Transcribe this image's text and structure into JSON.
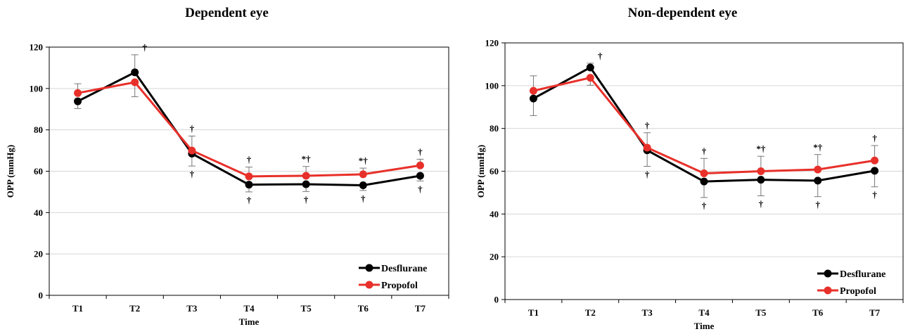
{
  "chart_data": [
    {
      "type": "line",
      "title": "Dependent eye",
      "xlabel": "Time",
      "ylabel": "OPP (mmHg)",
      "categories": [
        "T1",
        "T2",
        "T3",
        "T4",
        "T5",
        "T6",
        "T7"
      ],
      "ylim": [
        0,
        120
      ],
      "yticks": [
        "0",
        "20",
        "40",
        "60",
        "80",
        "100",
        "120"
      ],
      "grid": true,
      "legend_position": "bottom-right",
      "series": [
        {
          "name": "Desflurane",
          "color": "#000000",
          "values": [
            93.8,
            107.8,
            68.5,
            53.5,
            53.7,
            53.2,
            57.8
          ],
          "errors": [
            3.5,
            8.5,
            6,
            3.5,
            3.5,
            2.5,
            2.5
          ],
          "error_dir": [
            "down",
            "up",
            "down",
            "down",
            "down",
            "down",
            "down"
          ],
          "annotations": [
            "",
            "†",
            "†",
            "†",
            "†",
            "†",
            "†"
          ]
        },
        {
          "name": "Propofol",
          "color": "#e8302a",
          "values": [
            97.8,
            103,
            70,
            57.5,
            57.8,
            58.5,
            62.8
          ],
          "errors": [
            4.5,
            7,
            7,
            4.5,
            4.5,
            3,
            3
          ],
          "error_dir": [
            "up",
            "down",
            "up",
            "up",
            "up",
            "up",
            "up"
          ],
          "annotations": [
            "",
            "",
            "†",
            "†",
            "*†",
            "*†",
            "†"
          ]
        }
      ]
    },
    {
      "type": "line",
      "title": "Non-dependent eye",
      "xlabel": "Time",
      "ylabel": "OPP (mmHg)",
      "categories": [
        "T1",
        "T2",
        "T3",
        "T4",
        "T5",
        "T6",
        "T7"
      ],
      "ylim": [
        0,
        120
      ],
      "yticks": [
        "0",
        "20",
        "40",
        "60",
        "80",
        "100",
        "120"
      ],
      "grid": true,
      "legend_position": "bottom-right",
      "series": [
        {
          "name": "Desflurane",
          "color": "#000000",
          "values": [
            94,
            108.5,
            69.8,
            55.2,
            56,
            55.6,
            60.2
          ],
          "errors": [
            8,
            2,
            7.5,
            7.5,
            7.5,
            7.5,
            7.5
          ],
          "error_dir": [
            "down",
            "up",
            "down",
            "down",
            "down",
            "down",
            "down"
          ],
          "annotations": [
            "",
            "†",
            "†",
            "†",
            "†",
            "†",
            "†"
          ]
        },
        {
          "name": "Propofol",
          "color": "#e8302a",
          "values": [
            97.6,
            103.7,
            71,
            59,
            60,
            60.8,
            65
          ],
          "errors": [
            7,
            3.5,
            7,
            7,
            7,
            7,
            7
          ],
          "error_dir": [
            "up",
            "down",
            "up",
            "up",
            "up",
            "up",
            "up"
          ],
          "annotations": [
            "",
            "",
            "†",
            "†",
            "*†",
            "*†",
            "†"
          ]
        }
      ]
    }
  ]
}
